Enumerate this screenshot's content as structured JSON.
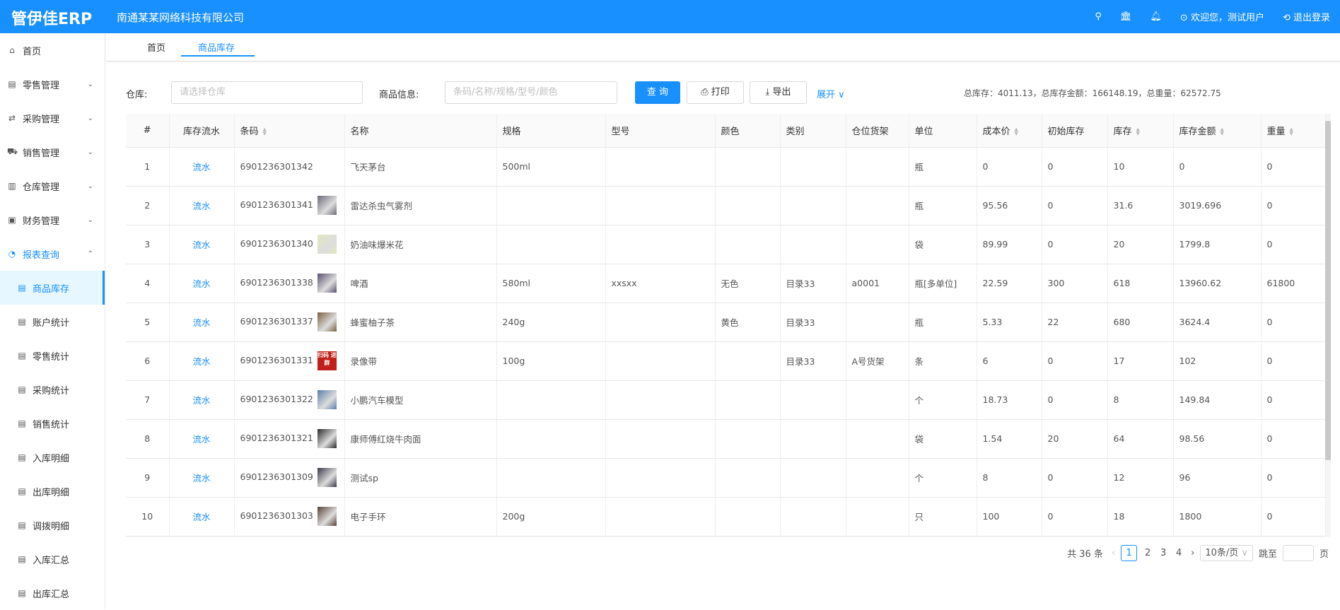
{
  "header": {
    "logo": "管伊佳ERP",
    "company": "南通某某网络科技有限公司",
    "welcome": "欢迎您，测试用户",
    "logout": "退出登录"
  },
  "sidebar": [
    {
      "label": "首页",
      "icon": "home-icon",
      "ic": "⌂"
    },
    {
      "label": "零售管理",
      "icon": "gift-icon",
      "ic": "▤",
      "arrow": "⌄"
    },
    {
      "label": "采购管理",
      "icon": "swap-icon",
      "ic": "⇄",
      "arrow": "⌄"
    },
    {
      "label": "销售管理",
      "icon": "cart-icon",
      "ic": "⛟",
      "arrow": "⌄"
    },
    {
      "label": "仓库管理",
      "icon": "warehouse-icon",
      "ic": "▥",
      "arrow": "⌄"
    },
    {
      "label": "财务管理",
      "icon": "finance-icon",
      "ic": "▣",
      "arrow": "⌄"
    },
    {
      "label": "报表查询",
      "icon": "pie-chart-icon",
      "ic": "◔",
      "arrow": "⌃",
      "open": true
    },
    {
      "label": "商品库存",
      "icon": "list-icon",
      "ic": "▤",
      "sub": true,
      "active": true
    },
    {
      "label": "账户统计",
      "icon": "list-icon",
      "ic": "▤",
      "sub": true
    },
    {
      "label": "零售统计",
      "icon": "list-icon",
      "ic": "▤",
      "sub": true
    },
    {
      "label": "采购统计",
      "icon": "list-icon",
      "ic": "▤",
      "sub": true
    },
    {
      "label": "销售统计",
      "icon": "list-icon",
      "ic": "▤",
      "sub": true
    },
    {
      "label": "入库明细",
      "icon": "list-icon",
      "ic": "▤",
      "sub": true
    },
    {
      "label": "出库明细",
      "icon": "list-icon",
      "ic": "▤",
      "sub": true
    },
    {
      "label": "调拨明细",
      "icon": "list-icon",
      "ic": "▤",
      "sub": true
    },
    {
      "label": "入库汇总",
      "icon": "list-icon",
      "ic": "▤",
      "sub": true
    },
    {
      "label": "出库汇总",
      "icon": "list-icon",
      "ic": "▤",
      "sub": true
    }
  ],
  "tabs": [
    "首页",
    "商品库存"
  ],
  "filters": {
    "warehouse_label": "仓库:",
    "warehouse_placeholder": "请选择仓库",
    "info_label": "商品信息:",
    "info_placeholder": "条码/名称/规格/型号/颜色",
    "query": "查 询",
    "print": "打印",
    "export": "导出",
    "expand": "展开"
  },
  "totals": "总库存：4011.13，总库存金额：166148.19，总重量：62572.75",
  "table": {
    "columns": [
      {
        "label": "#"
      },
      {
        "label": "库存流水"
      },
      {
        "label": "条码",
        "sort": true
      },
      {
        "label": "名称"
      },
      {
        "label": "规格"
      },
      {
        "label": "型号"
      },
      {
        "label": "颜色"
      },
      {
        "label": "类别"
      },
      {
        "label": "仓位货架"
      },
      {
        "label": "单位"
      },
      {
        "label": "成本价",
        "sort": true
      },
      {
        "label": "初始库存"
      },
      {
        "label": "库存",
        "sort": true
      },
      {
        "label": "库存金额",
        "sort": true
      },
      {
        "label": "重量",
        "sort": true
      }
    ],
    "rows": [
      [
        "1",
        "流水",
        "6901236301342",
        "飞天茅台",
        "500ml",
        "",
        "",
        "",
        "",
        "瓶",
        "0",
        "0",
        "10",
        "0",
        "0"
      ],
      [
        "2",
        "流水",
        "6901236301341",
        "雷达杀虫气雾剂",
        "",
        "",
        "",
        "",
        "",
        "瓶",
        "95.56",
        "0",
        "31.6",
        "3019.696",
        "0"
      ],
      [
        "3",
        "流水",
        "6901236301340",
        "奶油味爆米花",
        "",
        "",
        "",
        "",
        "",
        "袋",
        "89.99",
        "0",
        "20",
        "1799.8",
        "0"
      ],
      [
        "4",
        "流水",
        "6901236301338",
        "啤酒",
        "580ml",
        "xxsxx",
        "无色",
        "目录33",
        "a0001",
        "瓶[多单位]",
        "22.59",
        "300",
        "618",
        "13960.62",
        "61800"
      ],
      [
        "5",
        "流水",
        "6901236301337",
        "蜂蜜柚子茶",
        "240g",
        "",
        "黄色",
        "目录33",
        "",
        "瓶",
        "5.33",
        "22",
        "680",
        "3624.4",
        "0"
      ],
      [
        "6",
        "流水",
        "6901236301331",
        "录像带",
        "100g",
        "",
        "",
        "目录33",
        "A号货架",
        "条",
        "6",
        "0",
        "17",
        "102",
        "0"
      ],
      [
        "7",
        "流水",
        "6901236301322",
        "小鹏汽车模型",
        "",
        "",
        "",
        "",
        "",
        "个",
        "18.73",
        "0",
        "8",
        "149.84",
        "0"
      ],
      [
        "8",
        "流水",
        "6901236301321",
        "康师傅红烧牛肉面",
        "",
        "",
        "",
        "",
        "",
        "袋",
        "1.54",
        "20",
        "64",
        "98.56",
        "0"
      ],
      [
        "9",
        "流水",
        "6901236301309",
        "测试sp",
        "",
        "",
        "",
        "",
        "",
        "个",
        "8",
        "0",
        "12",
        "96",
        "0"
      ],
      [
        "10",
        "流水",
        "6901236301303",
        "电子手环",
        "200g",
        "",
        "",
        "",
        "",
        "只",
        "100",
        "0",
        "18",
        "1800",
        "0"
      ]
    ],
    "thumb_colors": [
      null,
      "#6b6b78",
      "#dfe8c0",
      "#5a5070",
      "#7a6040",
      "#c0201a",
      "#5a7fa8",
      "#2a2a2a",
      "#3a3a48",
      "#5a4038"
    ],
    "thumb_text": {
      "5": "扫码 进群"
    }
  },
  "pagination": {
    "total": "共 36 条",
    "pages": [
      "1",
      "2",
      "3",
      "4"
    ],
    "current": "1",
    "page_size": "10条/页",
    "jump_label": "跳至",
    "page_suffix": "页"
  },
  "colors": {
    "primary": "#1890ff"
  }
}
